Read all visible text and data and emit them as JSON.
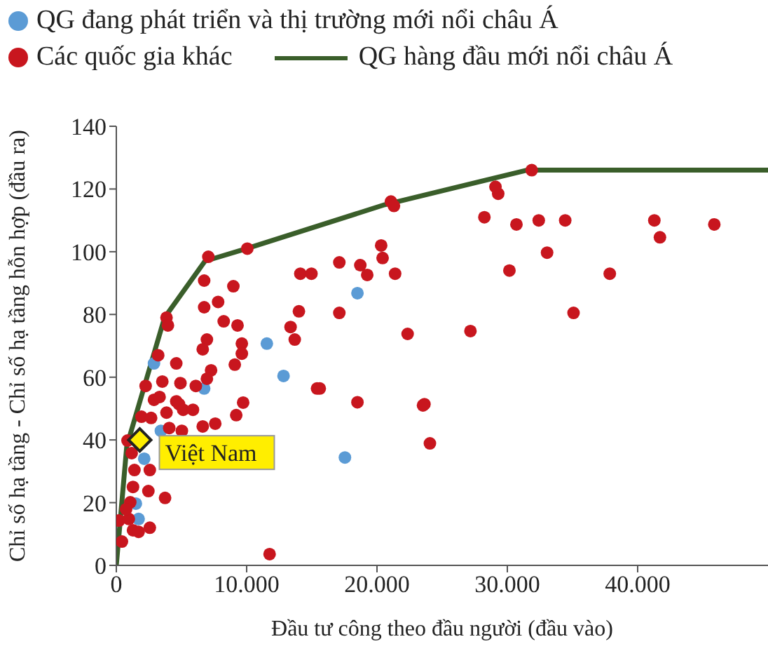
{
  "chart_data": {
    "type": "scatter",
    "xlabel": "Đầu tư công theo đầu người (đầu vào)",
    "ylabel": "Chỉ số hạ tầng - Chỉ số hạ tầng  hỗn hợp (đầu ra)",
    "xlim": [
      0,
      50000
    ],
    "ylim": [
      0,
      140
    ],
    "xticks": [
      0,
      {
        "value": 10000,
        "label": "10.000"
      },
      {
        "value": 20000,
        "label": "20.000"
      },
      {
        "value": 30000,
        "label": "30.000"
      },
      {
        "value": 40000,
        "label": "40.000"
      }
    ],
    "yticks": [
      0,
      20,
      40,
      60,
      80,
      100,
      120,
      140
    ],
    "legend": "top",
    "marker": "circle",
    "annotations": [
      {
        "text": "Việt Nam",
        "x": 1800,
        "y": 40
      }
    ],
    "series": [
      {
        "name": "QG đang phát triển và thị trường mới nổi châu Á",
        "color": "#5b9bd5",
        "x": [
          11550,
          12830,
          18500,
          17540,
          2890,
          6740,
          3420,
          2140,
          1500,
          1710
        ],
        "values": [
          70.7,
          60.4,
          86.8,
          34.4,
          64.4,
          56.4,
          42.9,
          34,
          19.7,
          14.8
        ]
      },
      {
        "name": "Các quốc gia khác",
        "color": "#c8161e",
        "x": [
          11760,
          45880,
          41710,
          41280,
          37860,
          35080,
          34440,
          33050,
          32410,
          30700,
          30160,
          31870,
          29300,
          29090,
          28240,
          27170,
          23640,
          24060,
          21070,
          21300,
          17110,
          18720,
          19250,
          20320,
          20430,
          21390,
          14120,
          14970,
          14010,
          17110,
          13370,
          13690,
          22350,
          15400,
          15610,
          18500,
          23530,
          10050,
          7060,
          6740,
          8980,
          7810,
          6740,
          8240,
          9300,
          3850,
          3960,
          6950,
          6630,
          9630,
          9630,
          3210,
          9090,
          4600,
          7270,
          6950,
          3530,
          4920,
          6100,
          2250,
          2890,
          3320,
          4600,
          4810,
          9730,
          5130,
          5880,
          3850,
          9200,
          1930,
          2670,
          4060,
          5030,
          6630,
          7590,
          860,
          1180,
          2570,
          1390,
          1280,
          2460,
          3740,
          1070,
          210,
          960,
          1280,
          1710,
          2570,
          430,
          750
        ],
        "values": [
          3.6,
          108.7,
          104.6,
          110,
          93,
          80.5,
          110,
          99.7,
          110,
          108.7,
          94,
          126,
          118.5,
          120.7,
          111,
          74.7,
          51.4,
          38.9,
          116,
          114.6,
          96.6,
          95.7,
          92.6,
          102,
          98,
          93,
          93,
          93,
          81,
          80.5,
          76,
          72,
          73.8,
          56.4,
          56.4,
          52,
          51,
          101,
          98.4,
          90.8,
          89,
          84,
          82.3,
          77.8,
          76.5,
          79,
          76.5,
          72,
          68.9,
          70.7,
          67.5,
          67,
          64,
          64.4,
          62.2,
          59.5,
          58.6,
          58.1,
          57.2,
          57.2,
          52.8,
          53.7,
          52.3,
          51.4,
          51.9,
          49.6,
          49.6,
          48.7,
          47.9,
          47.4,
          47,
          43.8,
          42.9,
          44.3,
          45.2,
          39.8,
          35.8,
          30.4,
          30.4,
          25,
          23.7,
          21.5,
          20.1,
          14.3,
          14.8,
          11.2,
          10.7,
          12,
          7.6,
          17.9
        ]
      },
      {
        "name": "QG hàng đầu mới nổi châu Á",
        "type": "line",
        "marker": "none",
        "color": "#3a5e2a",
        "x": [
          0,
          800,
          3700,
          6800,
          10000,
          20600,
          31500,
          50000
        ],
        "values": [
          0,
          38,
          79,
          97,
          101,
          115,
          126,
          126
        ]
      }
    ]
  }
}
